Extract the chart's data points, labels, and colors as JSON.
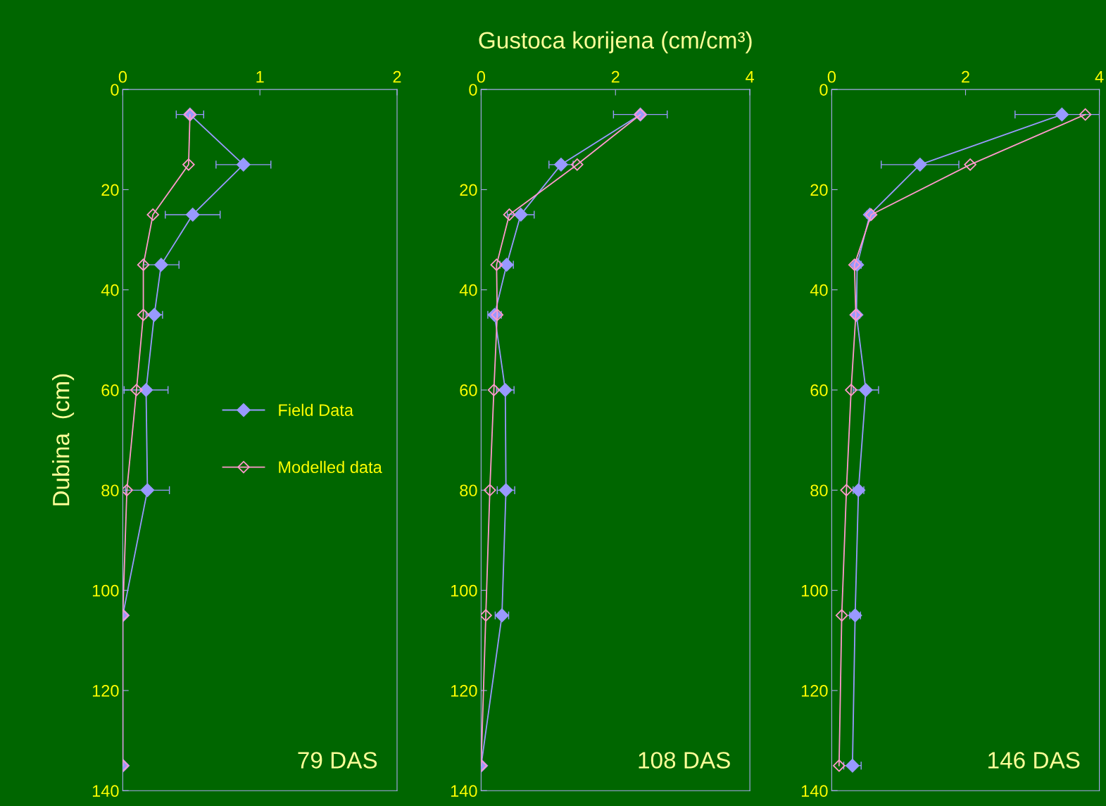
{
  "chart_data": [
    {
      "type": "line",
      "orientation": "horizontal",
      "ylabel": "Dubina  (cm)",
      "annotations": [
        "79 DAS"
      ],
      "xlim": [
        0,
        2
      ],
      "xticks": [
        0,
        1,
        2
      ],
      "ylim": [
        140,
        0
      ],
      "yticks": [
        0,
        20,
        40,
        60,
        80,
        100,
        120,
        140
      ],
      "marker": "diamond",
      "grid": false,
      "legend": "center right",
      "x": [
        5,
        15,
        25,
        35,
        45,
        60,
        80,
        105,
        135
      ],
      "series": [
        {
          "name": "Field Data",
          "color": "#9999ff",
          "values": [
            0.49,
            0.88,
            0.51,
            0.28,
            0.23,
            0.17,
            0.18,
            0,
            0
          ],
          "errors": [
            0.1,
            0.2,
            0.2,
            0.13,
            0.06,
            0.16,
            0.16,
            null,
            null
          ]
        },
        {
          "name": "Modelled data",
          "color": "#ff99cc",
          "values": [
            0.49,
            0.48,
            0.22,
            0.15,
            0.15,
            0.1,
            0.03,
            0,
            0
          ]
        }
      ]
    },
    {
      "type": "line",
      "orientation": "horizontal",
      "title": "Gustoca korijena (cm/cm³)",
      "annotations": [
        "108 DAS"
      ],
      "xlim": [
        0,
        4
      ],
      "xticks": [
        0,
        2,
        4
      ],
      "ylim": [
        140,
        0
      ],
      "yticks": [
        0,
        20,
        40,
        60,
        80,
        100,
        120,
        140
      ],
      "marker": "diamond",
      "grid": false,
      "x": [
        5,
        15,
        25,
        35,
        45,
        60,
        80,
        105,
        135
      ],
      "series": [
        {
          "color": "#9999ff",
          "values": [
            2.37,
            1.19,
            0.59,
            0.38,
            0.2,
            0.36,
            0.37,
            0.31,
            0
          ],
          "errors": [
            0.4,
            0.18,
            0.2,
            0.1,
            0.1,
            0.13,
            0.13,
            0.1,
            null
          ]
        },
        {
          "color": "#ff99cc",
          "values": [
            2.37,
            1.43,
            0.42,
            0.23,
            0.24,
            0.19,
            0.13,
            0.07,
            0
          ]
        }
      ]
    },
    {
      "type": "line",
      "orientation": "horizontal",
      "annotations": [
        "146 DAS"
      ],
      "xlim": [
        0,
        4
      ],
      "xticks": [
        0,
        2,
        4
      ],
      "ylim": [
        140,
        0
      ],
      "yticks": [
        0,
        20,
        40,
        60,
        80,
        100,
        120,
        140
      ],
      "marker": "diamond",
      "grid": false,
      "x": [
        5,
        15,
        25,
        35,
        45,
        60,
        80,
        105,
        135
      ],
      "series": [
        {
          "color": "#9999ff",
          "values": [
            3.44,
            1.32,
            0.57,
            0.38,
            0.37,
            0.51,
            0.4,
            0.35,
            0.31
          ],
          "errors": [
            [
              2.74,
              4
            ],
            0.58,
            0.05,
            0.06,
            0.05,
            0.19,
            0.08,
            0.08,
            0.13
          ]
        },
        {
          "color": "#ff99cc",
          "values": [
            3.79,
            2.07,
            0.59,
            0.34,
            0.36,
            0.29,
            0.22,
            0.15,
            0.11
          ]
        }
      ]
    }
  ]
}
